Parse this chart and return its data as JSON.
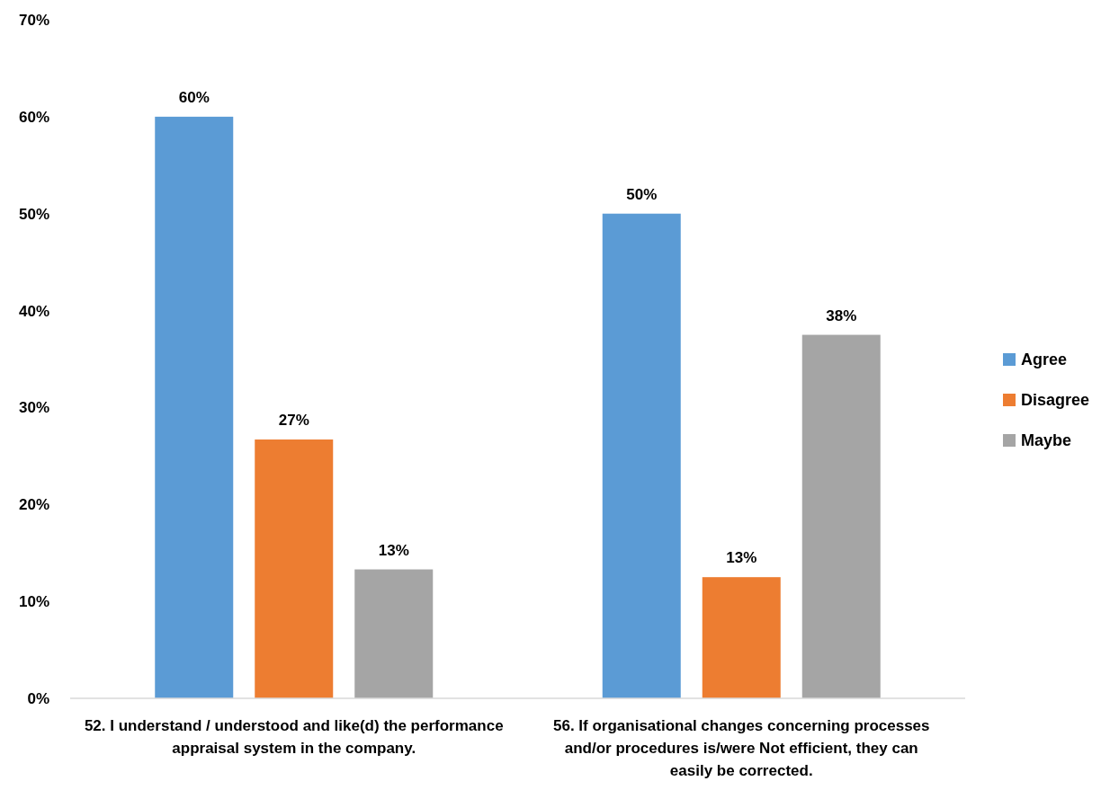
{
  "chart_data": {
    "type": "bar",
    "categories": [
      "52. I understand / understood and like(d) the performance appraisal system in the company.",
      "56. If organisational changes concerning processes and/or procedures is/were Not efficient, they can easily be corrected."
    ],
    "series": [
      {
        "name": "Agree",
        "color": "#5b9bd5",
        "values": [
          60,
          50
        ],
        "value_labels": [
          "60%",
          "50%"
        ]
      },
      {
        "name": "Disagree",
        "color": "#ed7d31",
        "values": [
          26.7,
          12.5
        ],
        "value_labels": [
          "27%",
          "13%"
        ]
      },
      {
        "name": "Maybe",
        "color": "#a5a5a5",
        "values": [
          13.3,
          37.5
        ],
        "value_labels": [
          "13%",
          "38%"
        ]
      }
    ],
    "ylim": [
      0,
      70
    ],
    "yticks": [
      {
        "value": 0,
        "label": "0%"
      },
      {
        "value": 10,
        "label": "10%"
      },
      {
        "value": 20,
        "label": "20%"
      },
      {
        "value": 30,
        "label": "30%"
      },
      {
        "value": 40,
        "label": "40%"
      },
      {
        "value": 50,
        "label": "50%"
      },
      {
        "value": 60,
        "label": "60%"
      },
      {
        "value": 70,
        "label": "70%"
      }
    ],
    "legend": "right",
    "grid": false
  }
}
